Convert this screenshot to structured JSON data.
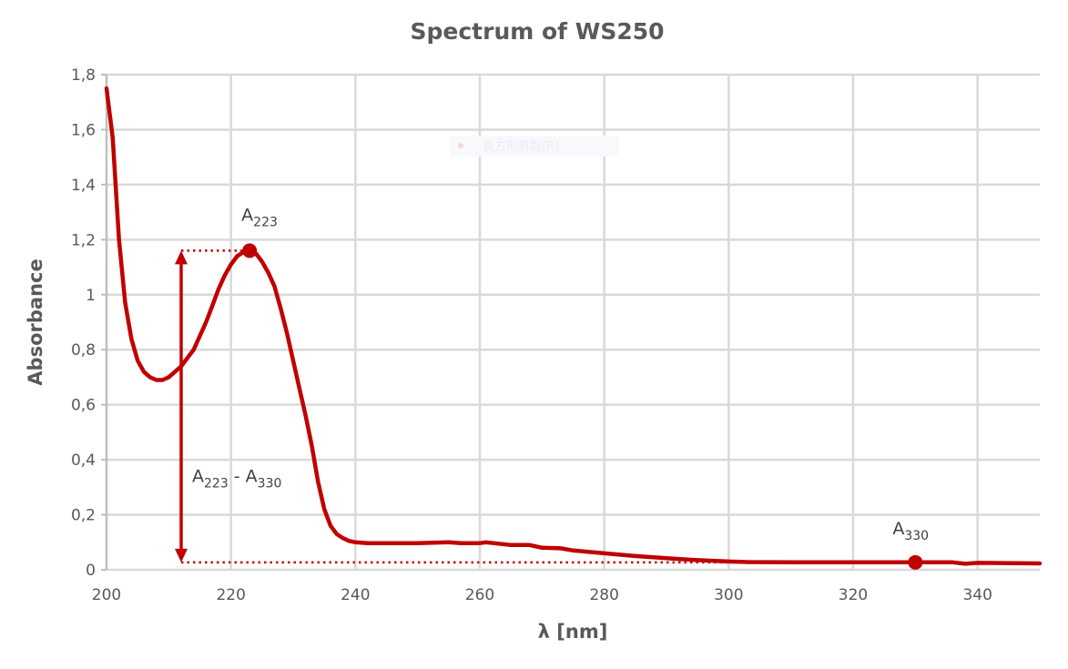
{
  "chart_data": {
    "type": "line",
    "title": "Spectrum of WS250",
    "xlabel": "λ [nm]",
    "ylabel": "Absorbance",
    "xlim": [
      200,
      350
    ],
    "ylim": [
      0,
      1.8
    ],
    "grid": true,
    "xticks": [
      200,
      220,
      240,
      260,
      280,
      300,
      320,
      340
    ],
    "xtick_labels": [
      "200",
      "220",
      "240",
      "260",
      "280",
      "300",
      "320",
      "340"
    ],
    "yticks": [
      0,
      0.2,
      0.4,
      0.6,
      0.8,
      1.0,
      1.2,
      1.4,
      1.6,
      1.8
    ],
    "ytick_labels": [
      "0",
      "0,2",
      "0,4",
      "0,6",
      "0,8",
      "1",
      "1,2",
      "1,4",
      "1,6",
      "1,8"
    ],
    "series": [
      {
        "name": "WS250",
        "color": "#C00000",
        "x": [
          200,
          201,
          202,
          203,
          204,
          205,
          206,
          207,
          208,
          209,
          210,
          211,
          212,
          213,
          214,
          215,
          216,
          217,
          218,
          219,
          220,
          221,
          222,
          223,
          224,
          225,
          226,
          227,
          228,
          229,
          230,
          231,
          232,
          233,
          234,
          235,
          236,
          237,
          238,
          239,
          240,
          242,
          250,
          255,
          257,
          260,
          261,
          263,
          265,
          268,
          270,
          273,
          275,
          280,
          285,
          290,
          295,
          300,
          303,
          310,
          330,
          336,
          338,
          340,
          350
        ],
        "y": [
          1.75,
          1.57,
          1.2,
          0.97,
          0.84,
          0.76,
          0.72,
          0.7,
          0.69,
          0.69,
          0.7,
          0.72,
          0.74,
          0.77,
          0.8,
          0.85,
          0.9,
          0.96,
          1.02,
          1.07,
          1.11,
          1.14,
          1.155,
          1.16,
          1.15,
          1.12,
          1.08,
          1.03,
          0.95,
          0.86,
          0.76,
          0.66,
          0.56,
          0.45,
          0.32,
          0.22,
          0.16,
          0.13,
          0.115,
          0.105,
          0.1,
          0.097,
          0.097,
          0.1,
          0.097,
          0.097,
          0.1,
          0.095,
          0.09,
          0.09,
          0.08,
          0.078,
          0.07,
          0.06,
          0.05,
          0.042,
          0.035,
          0.03,
          0.028,
          0.027,
          0.027,
          0.027,
          0.022,
          0.025,
          0.023
        ]
      }
    ],
    "annotations": {
      "peak": {
        "label": "A",
        "sub": "223",
        "x": 223,
        "y": 1.16
      },
      "base": {
        "label": "A",
        "sub": "330",
        "x": 330,
        "y": 0.027
      },
      "diff": {
        "label_a": "A",
        "sub_a": "223",
        "sep": " - ",
        "label_b": "A",
        "sub_b": "330",
        "arrow_x": 212
      }
    }
  },
  "overlay": {
    "snip_label": "長方形剪取(R)"
  }
}
